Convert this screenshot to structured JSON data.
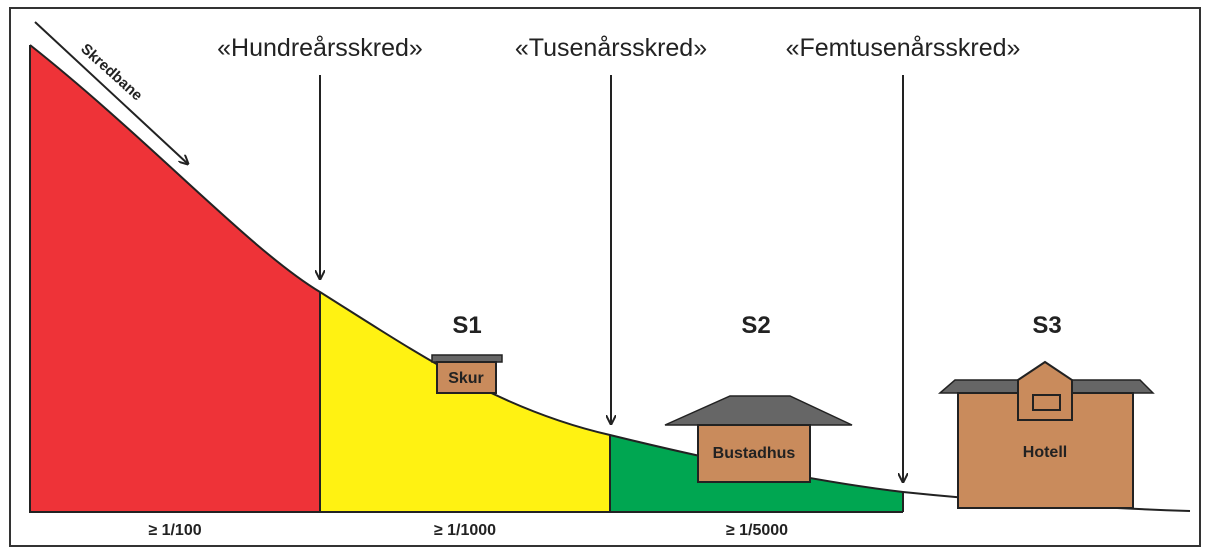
{
  "path_label": "Skredbane",
  "boundaries": [
    "«Hundreårsskred»",
    "«Tusenårsskred»",
    "«Femtusenårsskred»"
  ],
  "classes": [
    {
      "name": "S1",
      "building": "Skur"
    },
    {
      "name": "S2",
      "building": "Bustadhus"
    },
    {
      "name": "S3",
      "building": "Hotell"
    }
  ],
  "zones": [
    "≥ 1/100",
    "≥ 1/1000",
    "≥ 1/5000"
  ]
}
